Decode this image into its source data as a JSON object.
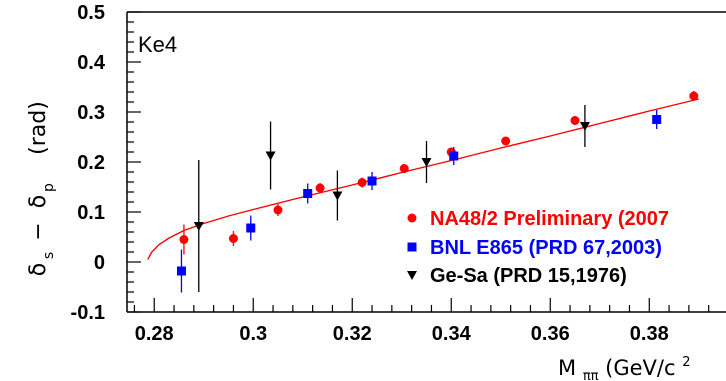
{
  "chart_data": {
    "type": "scatter",
    "title": "",
    "annotation": "Ke4",
    "ylabel_main": "δ",
    "ylabel_sub1": "s",
    "ylabel_minus": "−",
    "ylabel_sub2": "p",
    "ylabel_unit": "(rad)",
    "xlabel_main": "M",
    "xlabel_sub": "ππ",
    "xlabel_unit": "(GeV/c",
    "xlabel_sup": "2",
    "xlim": [
      0.2745,
      0.3955
    ],
    "ylim": [
      -0.1,
      0.5
    ],
    "x_ticks": [
      0.28,
      0.3,
      0.32,
      0.34,
      0.36,
      0.38
    ],
    "x_tick_labels": [
      "0.28",
      "0.3",
      "0.32",
      "0.34",
      "0.36",
      "0.38"
    ],
    "y_ticks": [
      -0.1,
      0,
      0.1,
      0.2,
      0.3,
      0.4,
      0.5
    ],
    "y_tick_labels": [
      "-0.1",
      "0",
      "0.1",
      "0.2",
      "0.3",
      "0.4",
      "0.5"
    ],
    "series": [
      {
        "name": "NA48/2 Preliminary (2007",
        "color": "#ff0000",
        "marker": "circle",
        "points": [
          {
            "x": 0.286,
            "y": 0.045,
            "err": 0.03
          },
          {
            "x": 0.296,
            "y": 0.047,
            "err": 0.015
          },
          {
            "x": 0.305,
            "y": 0.104,
            "err": 0.012
          },
          {
            "x": 0.3135,
            "y": 0.148,
            "err": 0.01
          },
          {
            "x": 0.322,
            "y": 0.159,
            "err": 0.01
          },
          {
            "x": 0.3305,
            "y": 0.187,
            "err": 0.009
          },
          {
            "x": 0.34,
            "y": 0.22,
            "err": 0.009
          },
          {
            "x": 0.351,
            "y": 0.242,
            "err": 0.008
          },
          {
            "x": 0.365,
            "y": 0.283,
            "err": 0.009
          },
          {
            "x": 0.389,
            "y": 0.332,
            "err": 0.01
          }
        ]
      },
      {
        "name": "BNL E865 (PRD 67,2003)",
        "color": "#0000ff",
        "marker": "square",
        "points": [
          {
            "x": 0.2855,
            "y": -0.018,
            "err": 0.043
          },
          {
            "x": 0.2995,
            "y": 0.068,
            "err": 0.025
          },
          {
            "x": 0.311,
            "y": 0.137,
            "err": 0.02
          },
          {
            "x": 0.324,
            "y": 0.162,
            "err": 0.018
          },
          {
            "x": 0.3405,
            "y": 0.212,
            "err": 0.018
          },
          {
            "x": 0.3815,
            "y": 0.285,
            "err": 0.019
          }
        ]
      },
      {
        "name": "Ge-Sa (PRD 15,1976)",
        "color": "#000000",
        "marker": "triangle-down",
        "points": [
          {
            "x": 0.289,
            "y": 0.072,
            "err": 0.132
          },
          {
            "x": 0.3035,
            "y": 0.213,
            "err": 0.068
          },
          {
            "x": 0.317,
            "y": 0.133,
            "err": 0.05
          },
          {
            "x": 0.335,
            "y": 0.2,
            "err": 0.042
          },
          {
            "x": 0.367,
            "y": 0.272,
            "err": 0.042
          }
        ]
      }
    ],
    "fit_curve": {
      "color": "#ff0000",
      "x": [
        0.2787,
        0.2795,
        0.281,
        0.283,
        0.286,
        0.29,
        0.295,
        0.3,
        0.31,
        0.32,
        0.33,
        0.34,
        0.35,
        0.36,
        0.37,
        0.38,
        0.39
      ],
      "y": [
        0.005,
        0.02,
        0.035,
        0.048,
        0.063,
        0.077,
        0.092,
        0.105,
        0.13,
        0.154,
        0.179,
        0.203,
        0.228,
        0.252,
        0.277,
        0.302,
        0.326
      ]
    },
    "legend_placement": "bottom-right",
    "grid": false
  }
}
